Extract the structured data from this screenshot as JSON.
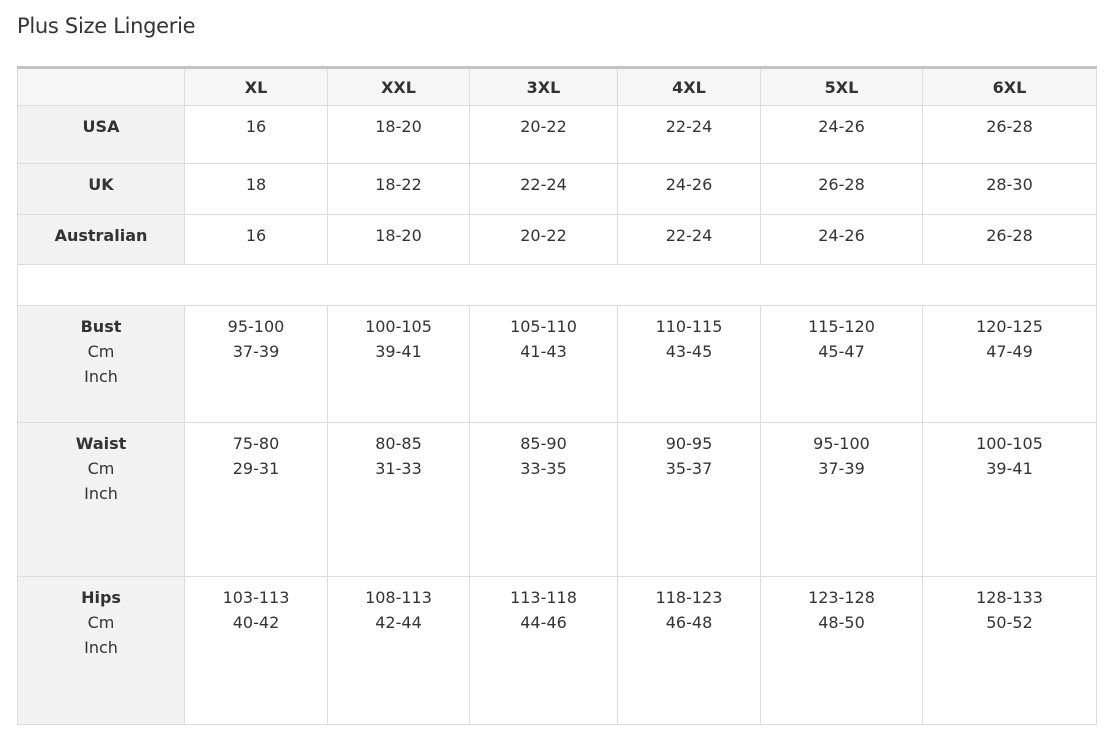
{
  "title": "Plus Size Lingerie",
  "columns": [
    "",
    "XL",
    "XXL",
    "3XL",
    "4XL",
    "5XL",
    "6XL"
  ],
  "size_rows": [
    {
      "label": "USA",
      "values": [
        "16",
        "18-20",
        "20-22",
        "22-24",
        "24-26",
        "26-28"
      ]
    },
    {
      "label": "UK",
      "values": [
        "18",
        "18-22",
        "22-24",
        "24-26",
        "26-28",
        "28-30"
      ]
    },
    {
      "label": "Australian",
      "values": [
        "16",
        "18-20",
        "20-22",
        "22-24",
        "24-26",
        "26-28"
      ]
    }
  ],
  "measure_rows": [
    {
      "label": "Bust",
      "unit1": "Cm",
      "unit2": "Inch",
      "cm": [
        "95-100",
        "100-105",
        "105-110",
        "110-115",
        "115-120",
        "120-125"
      ],
      "inch": [
        "37-39",
        "39-41",
        "41-43",
        "43-45",
        "45-47",
        "47-49"
      ]
    },
    {
      "label": "Waist",
      "unit1": "Cm",
      "unit2": "Inch",
      "cm": [
        "75-80",
        "80-85",
        "85-90",
        "90-95",
        "95-100",
        "100-105"
      ],
      "inch": [
        "29-31",
        "31-33",
        "33-35",
        "35-37",
        "37-39",
        "39-41"
      ]
    },
    {
      "label": "Hips",
      "unit1": "Cm",
      "unit2": "Inch",
      "cm": [
        "103-113",
        "108-113",
        "113-118",
        "118-123",
        "123-128",
        "128-133"
      ],
      "inch": [
        "40-42",
        "42-44",
        "44-46",
        "46-48",
        "48-50",
        "50-52"
      ]
    }
  ]
}
